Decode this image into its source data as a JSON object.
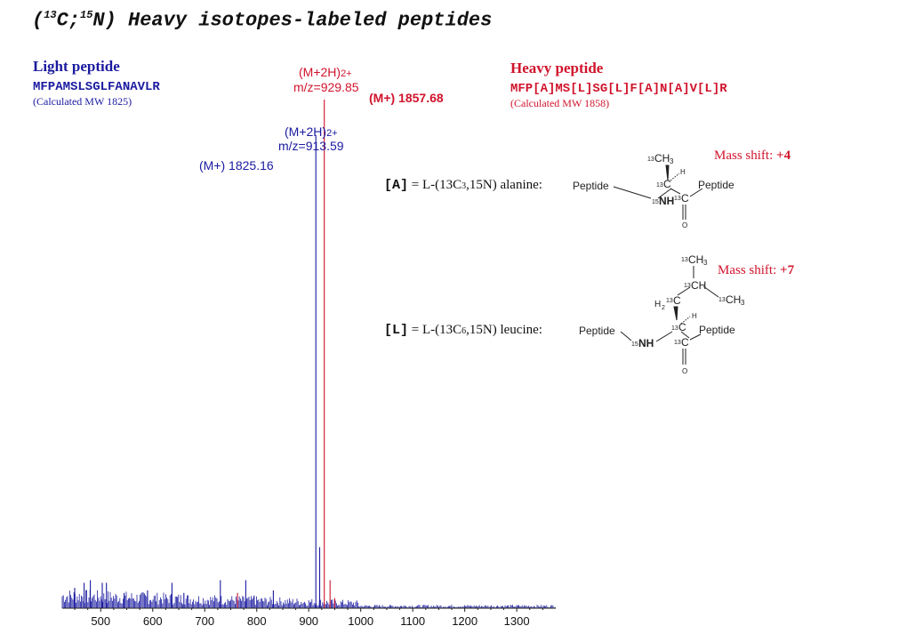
{
  "title": {
    "prefix": "(",
    "sup1": "13",
    "mid": "C;",
    "sup2": "15",
    "rest": "N) Heavy isotopes-labeled peptides"
  },
  "light": {
    "header": "Light peptide",
    "sequence": "MFPAMSLSGLFANAVLR",
    "calc": "(Calculated MW 1825)",
    "color": "#1a1aa0"
  },
  "heavy": {
    "header": "Heavy peptide",
    "sequence": "MFP[A]MS[L]SG[L]F[A]N[A]V[L]R",
    "calc": "(Calculated MW 1858)",
    "color": "#d0142c"
  },
  "annotations": {
    "heavy_2plus_line1": "(M+2H)",
    "heavy_2plus_charge": "2+",
    "heavy_2plus_mz": "m/z=929.85",
    "heavy_mplus": "(M+) 1857.68",
    "light_2plus_line1": "(M+2H)",
    "light_2plus_charge": "2+",
    "light_2plus_mz": "m/z=913.59",
    "light_mplus": "(M+) 1825.16"
  },
  "alanine": {
    "code": "[A]",
    "definition": "= L-(13C",
    "sub": "3",
    "definition_end": ",15N) alanine:",
    "mass_shift_label": "Mass shift: ",
    "mass_shift": "+4",
    "labels": {
      "peptide_left": "Peptide",
      "peptide_right": "Peptide",
      "nh": "NH",
      "n_iso": "15",
      "c_iso": "13",
      "c": "C",
      "ch3": "CH",
      "h3": "3",
      "h": "H",
      "o": "O"
    }
  },
  "leucine": {
    "code": "[L]",
    "definition": "= L-(13C",
    "sub": "6",
    "definition_end": ",15N) leucine:",
    "mass_shift_label": "Mass shift: ",
    "mass_shift": "+7",
    "labels": {
      "peptide_left": "Peptide",
      "peptide_right": "Peptide",
      "nh": "NH",
      "n_iso": "15",
      "c_iso": "13",
      "c": "C",
      "ch": "CH",
      "ch3": "CH",
      "h3": "3",
      "h2": "H",
      "two": "2",
      "h": "H",
      "o": "O"
    }
  },
  "chart_data": {
    "type": "bar",
    "xlabel": "",
    "ylabel": "",
    "xlim": [
      426,
      1375
    ],
    "ylim": [
      0,
      100
    ],
    "xticks": [
      500,
      600,
      700,
      800,
      900,
      1000,
      1100,
      1200,
      1300
    ],
    "grid": false,
    "series": [
      {
        "color": "#1a1aa0",
        "peaks": [
          [
            913.59,
            93
          ],
          [
            921,
            12
          ],
          [
            480,
            5.5
          ],
          [
            468,
            5
          ],
          [
            503,
            5
          ],
          [
            511,
            5
          ],
          [
            637,
            5
          ],
          [
            590,
            3.5
          ],
          [
            730,
            5.5
          ],
          [
            779,
            5.5
          ],
          [
            832,
            3.5
          ],
          [
            795,
            2.5
          ],
          [
            450,
            4
          ],
          [
            545,
            3
          ],
          [
            660,
            3
          ]
        ]
      },
      {
        "color": "#d0142c",
        "peaks": [
          [
            929.85,
            100
          ],
          [
            941,
            5.5
          ],
          [
            763,
            3
          ],
          [
            950,
            2
          ]
        ]
      }
    ]
  }
}
